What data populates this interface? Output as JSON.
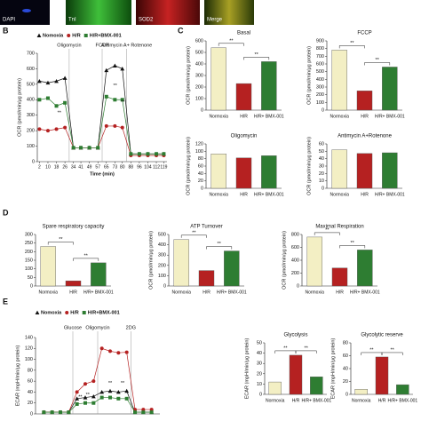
{
  "images": [
    "DAPI",
    "TnI",
    "SOD2",
    "Merge"
  ],
  "panel_labels": [
    "B",
    "C",
    "D",
    "E"
  ],
  "chart_data": [
    {
      "type": "line",
      "x_label": "Time (min)",
      "y_label": "OCR (pmol/min/μg protein)",
      "x": [
        2,
        10,
        18,
        26,
        34,
        41,
        49,
        57,
        65,
        73,
        80,
        88,
        96,
        104,
        112,
        119
      ],
      "xlim": [
        0,
        122
      ],
      "xticks": [
        2,
        10,
        18,
        26,
        34,
        41,
        49,
        57,
        65,
        73,
        80,
        88,
        96,
        104,
        112,
        119
      ],
      "ylim": [
        0,
        700
      ],
      "yticks": [
        0,
        100,
        200,
        300,
        400,
        500,
        600,
        700
      ],
      "series": [
        {
          "name": "Nomoxia",
          "color": "#111111",
          "marker": "triangle",
          "values": [
            520,
            510,
            520,
            540,
            90,
            90,
            90,
            90,
            590,
            620,
            600,
            50,
            50,
            50,
            50,
            50
          ]
        },
        {
          "name": "H/R",
          "color": "#b52121",
          "marker": "circle",
          "values": [
            210,
            200,
            210,
            220,
            90,
            90,
            90,
            90,
            230,
            230,
            220,
            40,
            40,
            40,
            40,
            40
          ]
        },
        {
          "name": "H/R+BMX-001",
          "color": "#2e7d32",
          "marker": "square",
          "values": [
            400,
            410,
            360,
            380,
            90,
            90,
            90,
            90,
            420,
            400,
            400,
            50,
            50,
            50,
            50,
            50
          ]
        }
      ],
      "injections": [
        {
          "label": "Oligomycin",
          "at": 30
        },
        {
          "label": "FCCP",
          "at": 61
        },
        {
          "label": "Antimycin A+ Rotenone",
          "at": 84
        }
      ],
      "annotations": [
        "**",
        "**",
        "**"
      ]
    },
    {
      "type": "bar",
      "title": "Basal",
      "y_label": "OCR (pmol/min/μg protein)",
      "categories": [
        "Normoxia",
        "H/R",
        "H/R+ BMX-001"
      ],
      "values": [
        540,
        230,
        420
      ],
      "colors": [
        "#f3efc4",
        "#b52121",
        "#2e7d32"
      ],
      "ylim": [
        0,
        600
      ],
      "yticks": [
        0,
        100,
        200,
        300,
        400,
        500,
        600
      ],
      "annotations": [
        "**",
        "**"
      ]
    },
    {
      "type": "bar",
      "title": "FCCP",
      "y_label": "OCR (pmol/min/μg protein)",
      "categories": [
        "Normoxia",
        "H/R",
        "H/R+ BMX-001"
      ],
      "values": [
        780,
        250,
        560
      ],
      "colors": [
        "#f3efc4",
        "#b52121",
        "#2e7d32"
      ],
      "ylim": [
        0,
        900
      ],
      "yticks": [
        0,
        100,
        200,
        300,
        400,
        500,
        600,
        700,
        800,
        900
      ],
      "annotations": [
        "**",
        "**"
      ]
    },
    {
      "type": "bar",
      "title": "Oligomycin",
      "y_label": "OCR (pmol/min/μg protein)",
      "categories": [
        "Normoxia",
        "H/R",
        "H/R+ BMX-001"
      ],
      "values": [
        93,
        82,
        88
      ],
      "colors": [
        "#f3efc4",
        "#b52121",
        "#2e7d32"
      ],
      "ylim": [
        0,
        120
      ],
      "yticks": [
        0,
        20,
        40,
        60,
        80,
        100,
        120
      ],
      "annotations": []
    },
    {
      "type": "bar",
      "title": "Antimycin A+Rotenone",
      "y_label": "OCR (pmol/min/μg protein)",
      "categories": [
        "Normoxia",
        "H/R",
        "H/R+ BMX-001"
      ],
      "values": [
        52,
        47,
        48
      ],
      "colors": [
        "#f3efc4",
        "#b52121",
        "#2e7d32"
      ],
      "ylim": [
        0,
        60
      ],
      "yticks": [
        0,
        10,
        20,
        30,
        40,
        50,
        60
      ],
      "annotations": []
    },
    {
      "type": "bar",
      "title": "Spare respiratory capacity",
      "categories": [
        "Normoxia",
        "H/R",
        "H/R+ BMX-001"
      ],
      "values": [
        230,
        30,
        135
      ],
      "colors": [
        "#f3efc4",
        "#b52121",
        "#2e7d32"
      ],
      "ylim": [
        0,
        300
      ],
      "yticks": [
        0,
        50,
        100,
        150,
        200,
        250,
        300
      ],
      "annotations": [
        "**",
        "**"
      ]
    },
    {
      "type": "bar",
      "title": "ATP Turnover",
      "y_label": "OCR (pmol/min/μg protein)",
      "categories": [
        "Normoxia",
        "H/R",
        "H/R+ BMX-001"
      ],
      "values": [
        450,
        150,
        340
      ],
      "colors": [
        "#f3efc4",
        "#b52121",
        "#2e7d32"
      ],
      "ylim": [
        0,
        500
      ],
      "yticks": [
        0,
        100,
        200,
        300,
        400,
        500
      ],
      "annotations": [
        "**",
        "**"
      ]
    },
    {
      "type": "bar",
      "title": "Maximal Respiration",
      "y_label": "OCR (pmol/min/μg protein)",
      "categories": [
        "Normoxia",
        "H/R",
        "H/R+ BMX-001"
      ],
      "values": [
        760,
        280,
        560
      ],
      "colors": [
        "#f3efc4",
        "#b52121",
        "#2e7d32"
      ],
      "ylim": [
        0,
        800
      ],
      "yticks": [
        0,
        200,
        400,
        600,
        800
      ],
      "annotations": [
        "**",
        "**"
      ]
    },
    {
      "type": "line",
      "y_label": "ECAR (mpH/min/μg protein)",
      "x": [
        1,
        2,
        3,
        4,
        5,
        6,
        7,
        8,
        9,
        10,
        11,
        12,
        13,
        14
      ],
      "xlim": [
        0,
        15
      ],
      "ylim": [
        0,
        140
      ],
      "yticks": [
        0,
        20,
        40,
        60,
        80,
        100,
        120,
        140
      ],
      "series": [
        {
          "name": "Nomoxia",
          "color": "#111111",
          "marker": "triangle",
          "values": [
            3,
            3,
            3,
            3,
            28,
            30,
            32,
            40,
            42,
            40,
            42,
            3,
            3,
            3
          ]
        },
        {
          "name": "H/R",
          "color": "#b52121",
          "marker": "circle",
          "values": [
            3,
            3,
            3,
            3,
            40,
            55,
            60,
            120,
            115,
            112,
            113,
            8,
            8,
            8
          ]
        },
        {
          "name": "H/R+BMX-001",
          "color": "#2e7d32",
          "marker": "square",
          "values": [
            3,
            3,
            3,
            3,
            18,
            20,
            20,
            30,
            30,
            28,
            28,
            3,
            3,
            3
          ]
        }
      ],
      "injections": [
        {
          "label": "Glucose",
          "at": 4.5
        },
        {
          "label": "Oligomycin",
          "at": 7.5
        },
        {
          "label": "2DG",
          "at": 11.5
        }
      ],
      "annotations": [
        "**",
        "**",
        "**",
        "**"
      ]
    },
    {
      "type": "bar",
      "title": "Glycolysis",
      "y_label": "ECAR (mpH/min/μg protein)",
      "categories": [
        "Normoxia",
        "H/R",
        "H/R+ BMX-001"
      ],
      "values": [
        12,
        38,
        17
      ],
      "colors": [
        "#f3efc4",
        "#b52121",
        "#2e7d32"
      ],
      "ylim": [
        0,
        50
      ],
      "yticks": [
        0,
        10,
        20,
        30,
        40,
        50
      ],
      "annotations": [
        "**",
        "**"
      ]
    },
    {
      "type": "bar",
      "title": "Glycolytic reserve",
      "y_label": "ECAR (mpH/min/μg protein)",
      "categories": [
        "Normoxia",
        "H/R",
        "H/R+ BMX-001"
      ],
      "values": [
        8,
        58,
        15
      ],
      "colors": [
        "#f3efc4",
        "#b52121",
        "#2e7d32"
      ],
      "ylim": [
        0,
        80
      ],
      "yticks": [
        0,
        20,
        40,
        60,
        80
      ],
      "annotations": [
        "**",
        "**"
      ]
    }
  ]
}
